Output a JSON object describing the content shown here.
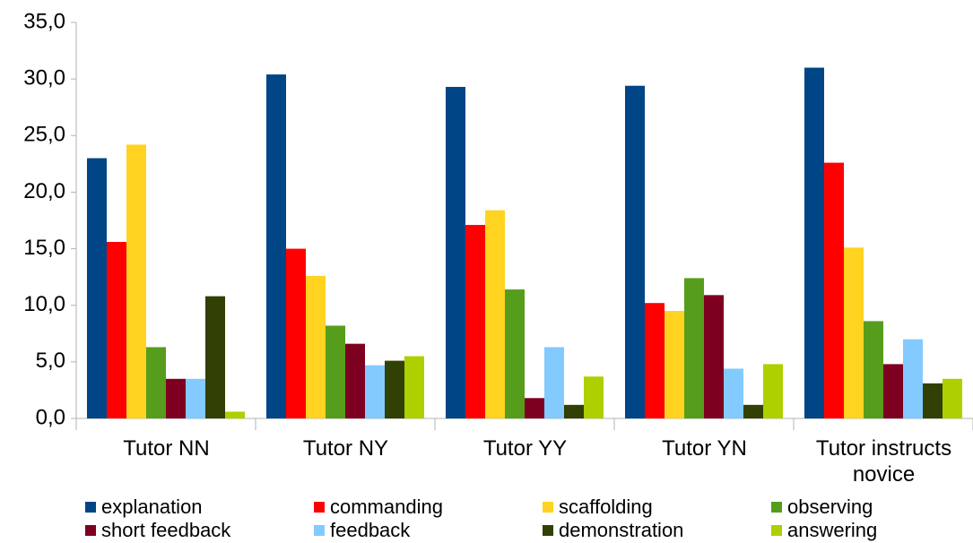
{
  "chart_data": {
    "type": "bar",
    "categories": [
      "Tutor NN",
      "Tutor NY",
      "Tutor YY",
      "Tutor YN",
      "Tutor instructs novice"
    ],
    "series": [
      {
        "name": "explanation",
        "color": "#004586",
        "values": [
          23.0,
          30.4,
          29.3,
          29.4,
          31.0
        ]
      },
      {
        "name": "commanding",
        "color": "#ff0000",
        "values": [
          15.6,
          15.0,
          17.1,
          10.2,
          22.6
        ]
      },
      {
        "name": "scaffolding",
        "color": "#ffd320",
        "values": [
          24.2,
          12.6,
          18.4,
          9.5,
          15.1
        ]
      },
      {
        "name": "observing",
        "color": "#579d1c",
        "values": [
          6.3,
          8.2,
          11.4,
          12.4,
          8.6
        ]
      },
      {
        "name": "short feedback",
        "color": "#7e0021",
        "values": [
          3.5,
          6.6,
          1.8,
          10.9,
          4.8
        ]
      },
      {
        "name": "feedback",
        "color": "#83caff",
        "values": [
          3.5,
          4.7,
          6.3,
          4.4,
          7.0
        ]
      },
      {
        "name": "demonstration",
        "color": "#314004",
        "values": [
          10.8,
          5.1,
          1.2,
          1.2,
          3.1
        ]
      },
      {
        "name": "answering",
        "color": "#aecf00",
        "values": [
          0.6,
          5.5,
          3.7,
          4.8,
          3.5
        ]
      }
    ],
    "ylim": [
      0,
      35
    ],
    "yticks": [
      {
        "value": 0,
        "label": "0,0"
      },
      {
        "value": 5,
        "label": "5,0"
      },
      {
        "value": 10,
        "label": "10,0"
      },
      {
        "value": 15,
        "label": "15,0"
      },
      {
        "value": 20,
        "label": "20,0"
      },
      {
        "value": 25,
        "label": "25,0"
      },
      {
        "value": 30,
        "label": "30,0"
      },
      {
        "value": 35,
        "label": "35,0"
      }
    ],
    "grid": false,
    "legend": "bottom"
  }
}
